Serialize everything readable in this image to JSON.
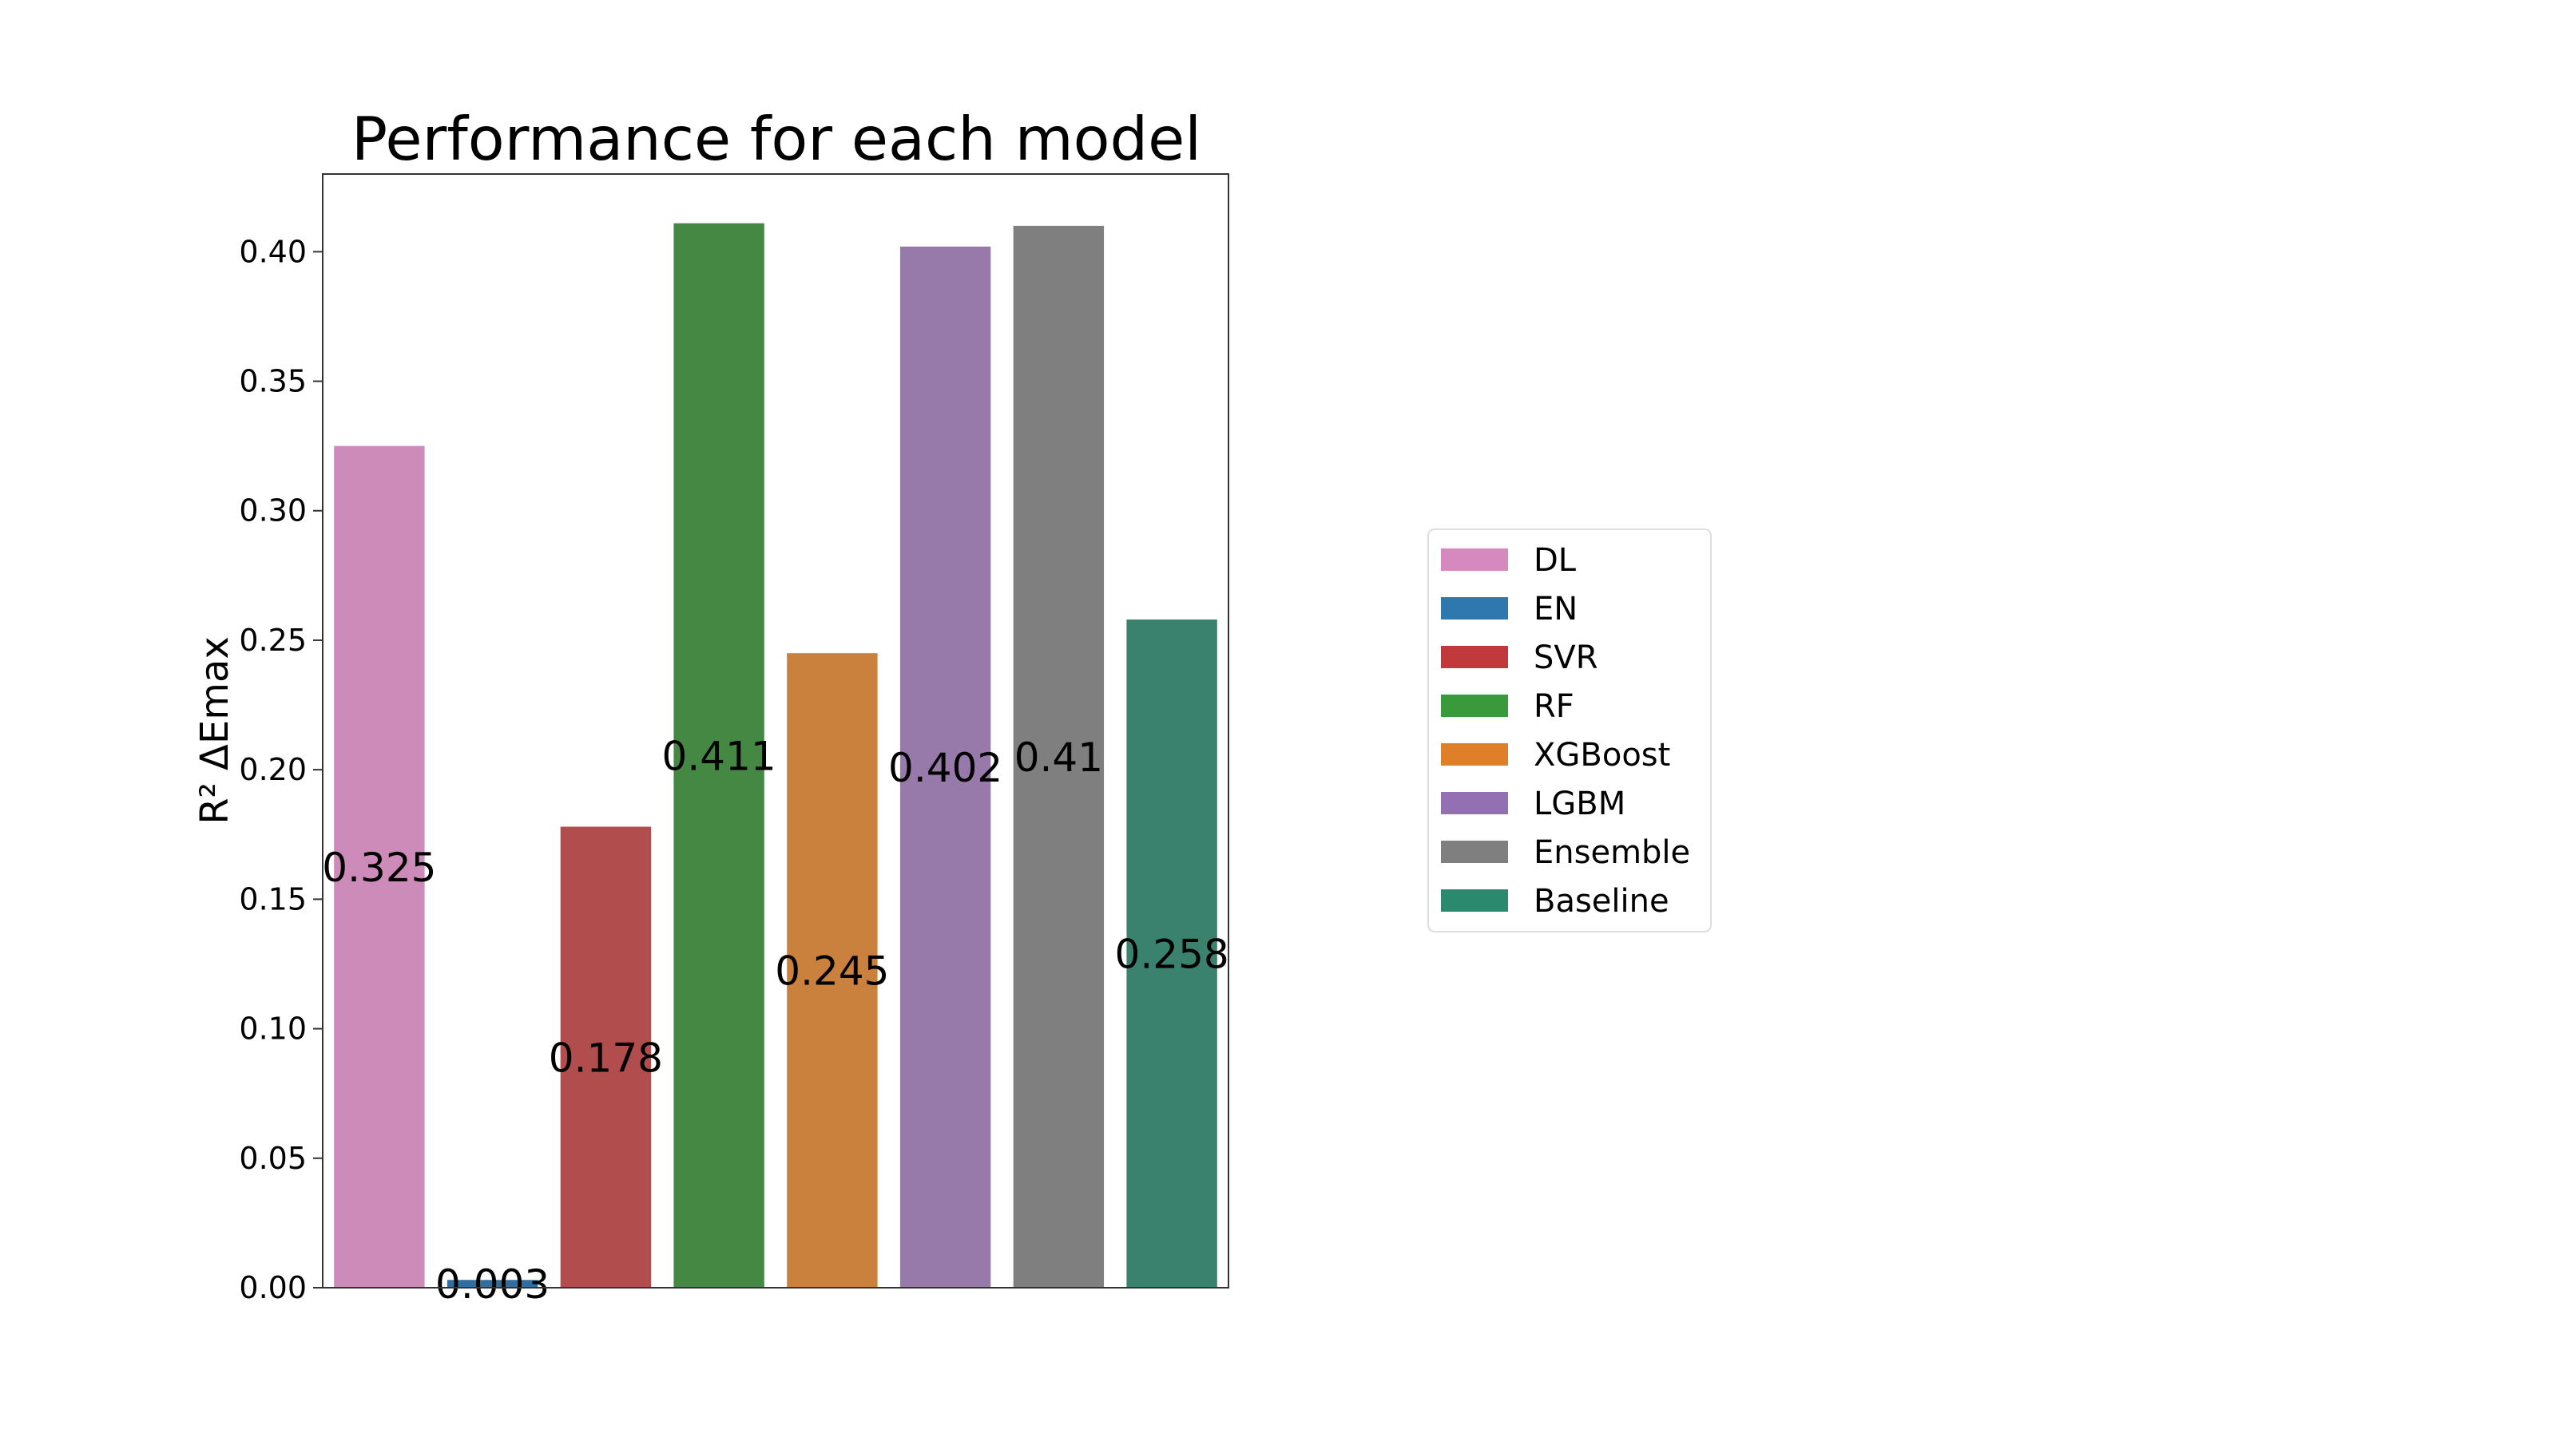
{
  "chart_data": {
    "type": "bar",
    "title": "Performance for each model",
    "xlabel": "",
    "ylabel": "R² ΔEmax",
    "ylim": [
      0,
      0.43
    ],
    "yticks": [
      "0.00",
      "0.05",
      "0.10",
      "0.15",
      "0.20",
      "0.25",
      "0.30",
      "0.35",
      "0.40"
    ],
    "categories": [
      "DL",
      "EN",
      "SVR",
      "RF",
      "XGBoost",
      "LGBM",
      "Ensemble",
      "Baseline"
    ],
    "values": [
      0.325,
      0.003,
      0.178,
      0.411,
      0.245,
      0.402,
      0.41,
      0.258
    ],
    "value_labels": [
      "0.325",
      "0.003",
      "0.178",
      "0.411",
      "0.245",
      "0.402",
      "0.41",
      "0.258"
    ],
    "colors": [
      "#cc8bb8",
      "#2f6e9e",
      "#b24d4d",
      "#448844",
      "#cb813e",
      "#977aaa",
      "#7f7f7f",
      "#3a826d"
    ],
    "legend_colors": [
      "#d689bf",
      "#2f78ad",
      "#c0393b",
      "#389a3a",
      "#e07f2a",
      "#9270b3",
      "#7f7f7f",
      "#2b8a6e"
    ],
    "grid": false,
    "legend_position": "right"
  }
}
